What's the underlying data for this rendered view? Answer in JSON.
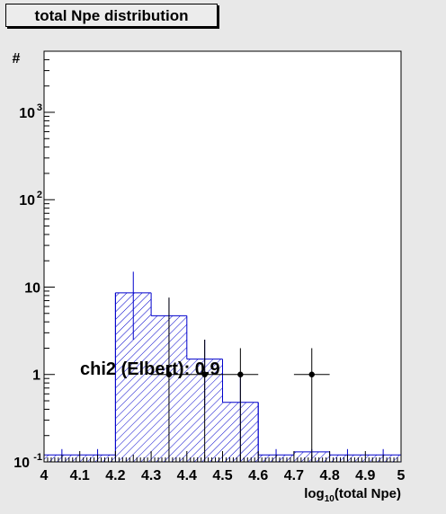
{
  "title": "total Npe distribution",
  "chart_data": {
    "type": "histogram",
    "title": "total Npe distribution",
    "xlabel_base": "log",
    "xlabel_sub": "10",
    "xlabel_rest": "(total Npe)",
    "ylabel": "#",
    "xlim": [
      4.0,
      5.0
    ],
    "ylim": [
      0.1,
      5000
    ],
    "yscale": "log",
    "x_ticks": [
      "4",
      "4.1",
      "4.2",
      "4.3",
      "4.4",
      "4.5",
      "4.6",
      "4.7",
      "4.8",
      "4.9",
      "5"
    ],
    "y_ticks": [
      {
        "base": "10",
        "exp": "-1",
        "value": 0.1
      },
      {
        "base": "1",
        "exp": "",
        "value": 1
      },
      {
        "base": "10",
        "exp": "",
        "value": 10
      },
      {
        "base": "10",
        "exp": "2",
        "value": 100
      },
      {
        "base": "10",
        "exp": "3",
        "value": 1000
      }
    ],
    "histogram": {
      "bin_edges": [
        4.0,
        4.05,
        4.1,
        4.15,
        4.2,
        4.25,
        4.3,
        4.35,
        4.4,
        4.45,
        4.5,
        4.55,
        4.6,
        4.65,
        4.7,
        4.75,
        4.8,
        4.85,
        4.9,
        4.95,
        5.0
      ],
      "values": [
        0.12,
        0.12,
        0.12,
        0.12,
        8.6,
        8.6,
        4.7,
        4.7,
        1.5,
        1.5,
        0.48,
        0.48,
        0.12,
        0.12,
        0.13,
        0.13,
        0.12,
        0.12,
        0.12,
        0.12
      ],
      "error_high": [
        0.14,
        0.14,
        0.14,
        0.14,
        15,
        15,
        7.5,
        7.5,
        2.5,
        2.5,
        1.0,
        1.0,
        0.14,
        0.17,
        0.14,
        0.14,
        0.14,
        0.14,
        0.14,
        0.14
      ],
      "error_low": [
        0.1,
        0.1,
        0.1,
        0.1,
        2.5,
        2.5,
        2.0,
        2.0,
        0.4,
        0.4,
        0.1,
        0.1,
        0.1,
        0.1,
        0.1,
        0.1,
        0.1,
        0.1,
        0.1,
        0.1
      ],
      "color": "#0000cc",
      "fill": "diagonal hatch"
    },
    "data_points": {
      "x": [
        4.35,
        4.45,
        4.55,
        4.75
      ],
      "y": [
        1.0,
        1.0,
        1.0,
        1.0
      ],
      "x_err": [
        0.05,
        0.05,
        0.05,
        0.05
      ],
      "y_err_high": [
        7.6,
        2.5,
        2.0,
        2.0
      ],
      "y_err_low": [
        0.1,
        0.1,
        0.1,
        0.1
      ],
      "color": "#000000"
    },
    "annotation": "chi2 (Elbert): 0.9"
  }
}
